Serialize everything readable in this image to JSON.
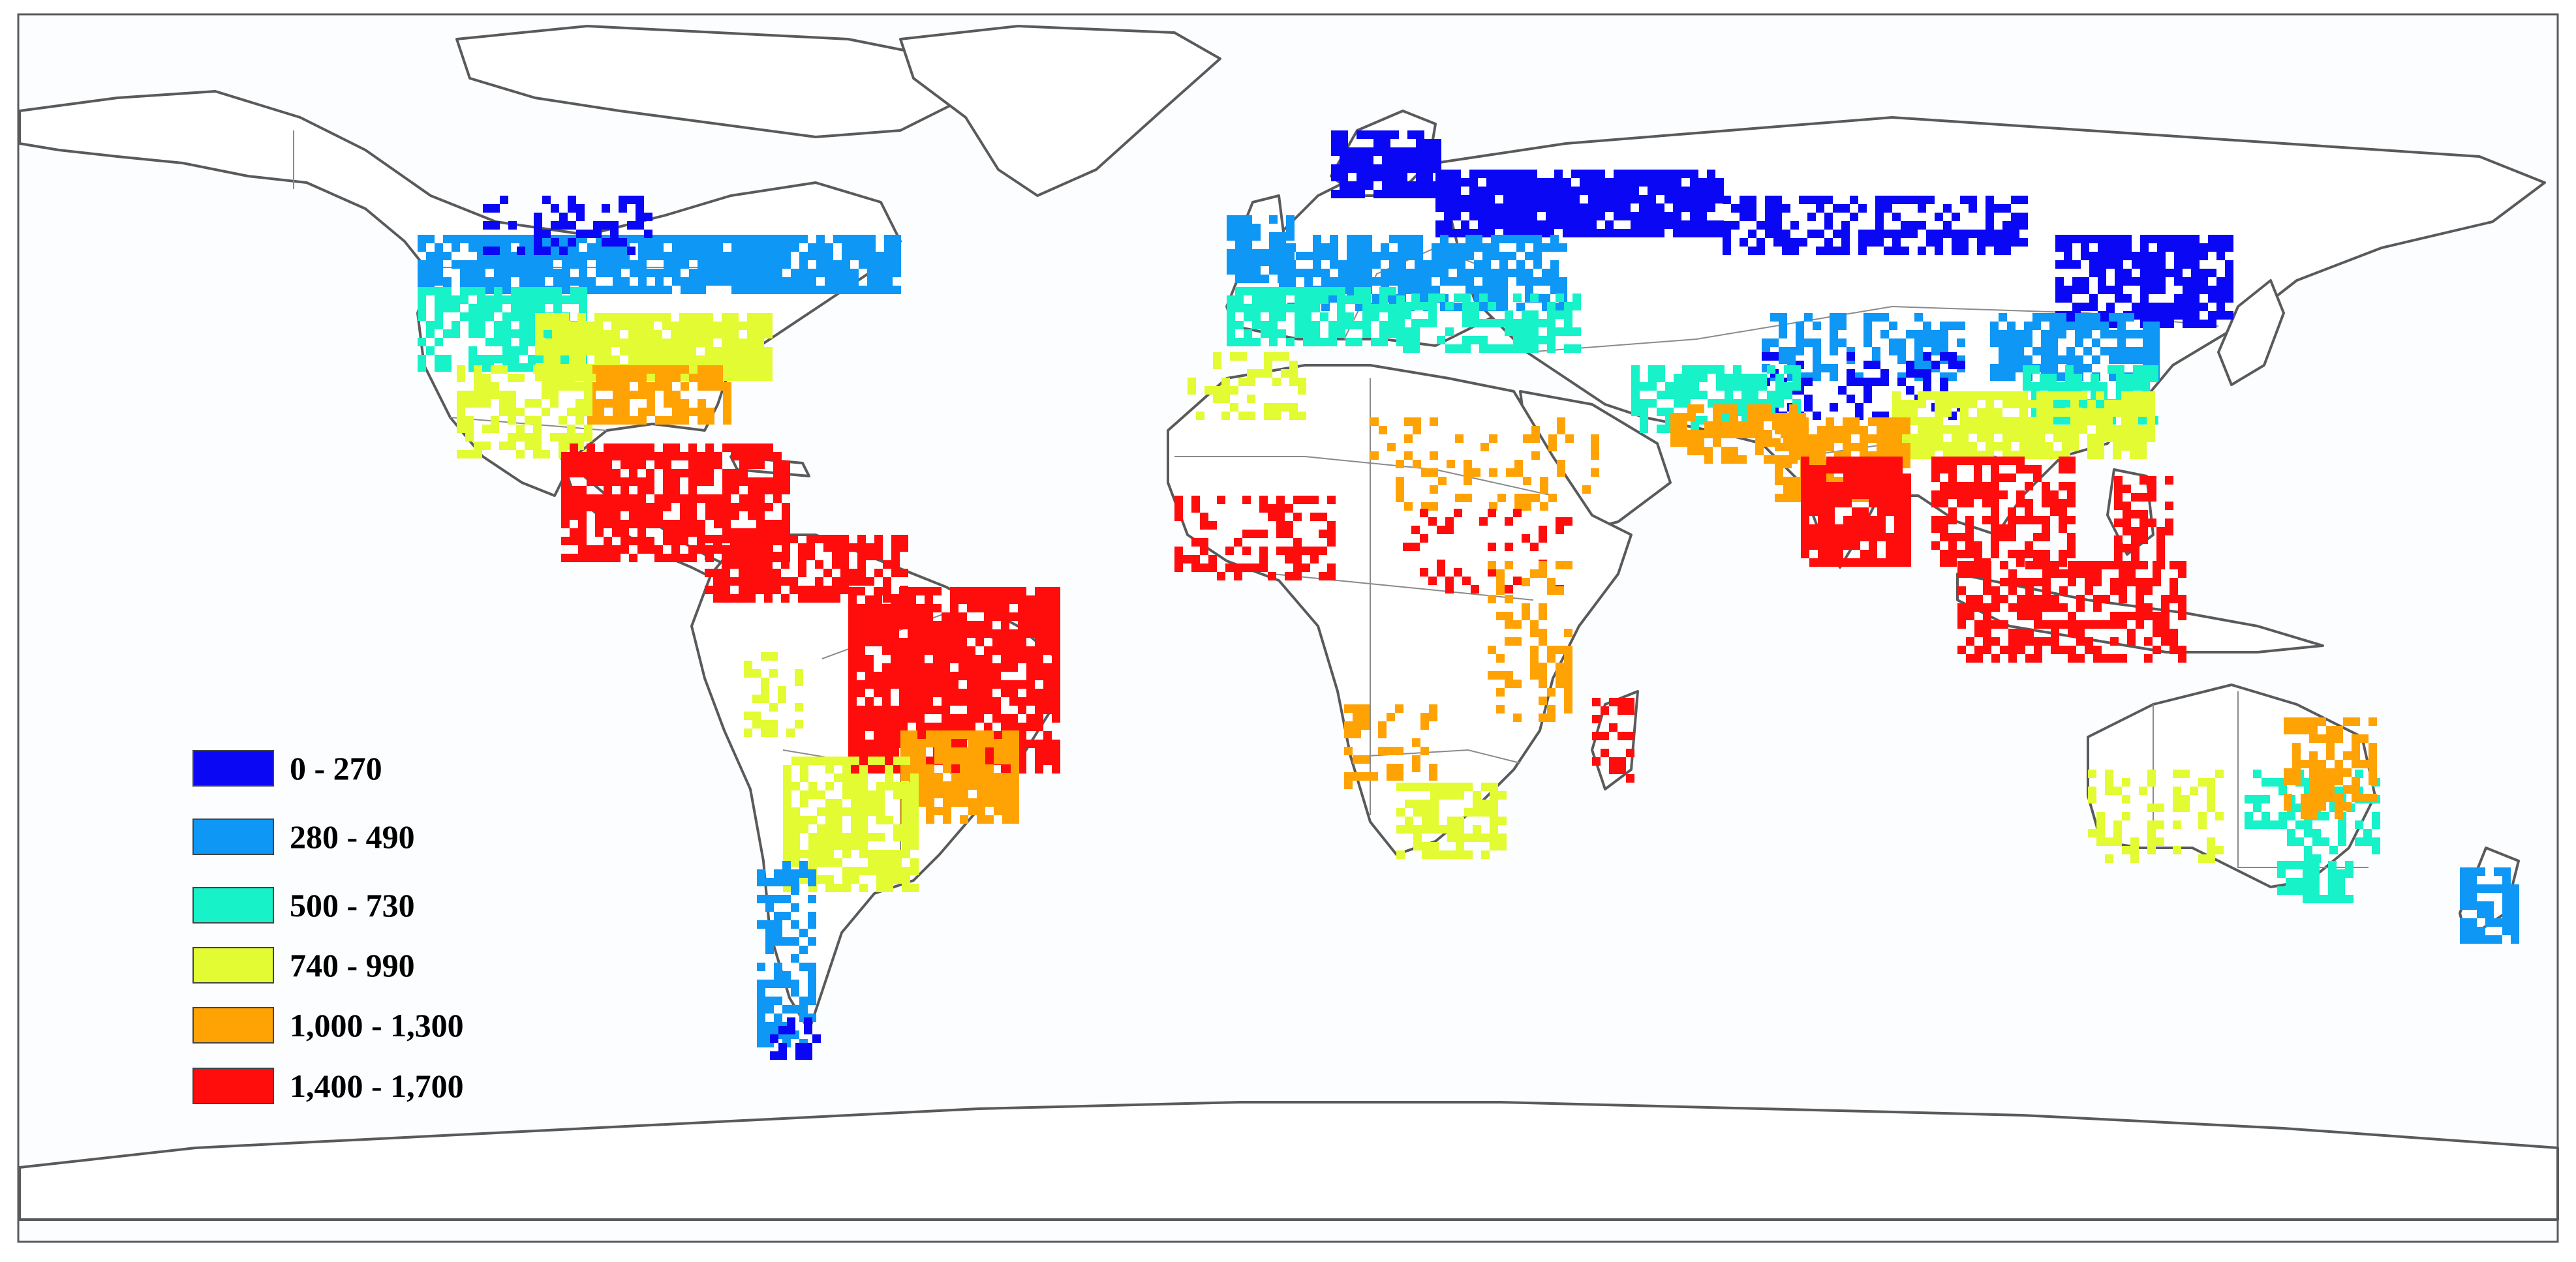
{
  "map": {
    "background_color": "#fbfdff",
    "land_fill": "#ffffff",
    "coastline_color": "#5a5a5a",
    "border_color": "#8a8a8a"
  },
  "legend": {
    "items": [
      {
        "label": "0 - 270",
        "color": "#0a07f5"
      },
      {
        "label": "280 - 490",
        "color": "#0e97f5"
      },
      {
        "label": "500 - 730",
        "color": "#17f2c9"
      },
      {
        "label": "740 - 990",
        "color": "#e2fb33"
      },
      {
        "label": "1,000 - 1,300",
        "color": "#ffa305"
      },
      {
        "label": "1,400 - 1,700",
        "color": "#ff0d0d"
      }
    ]
  }
}
